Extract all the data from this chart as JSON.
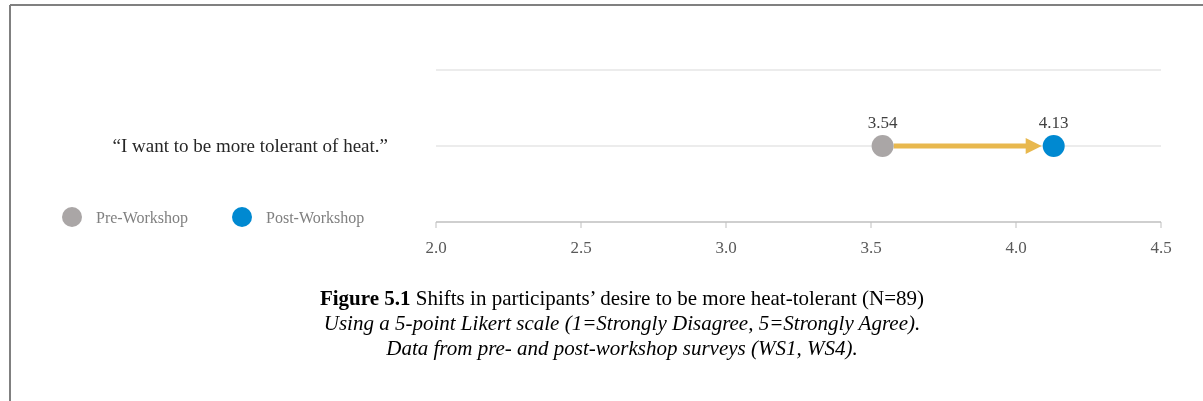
{
  "chart_data": {
    "type": "scatter",
    "orientation": "horizontal",
    "title": "Figure 5.1 Shifts in participants’ desire to be more heat-tolerant (N=89)",
    "subtitle": "Using a 5-point Likert scale (1=Strongly Disagree, 5=Strongly Agree).",
    "annotations": [
      "Data from pre- and post-workshop surveys (WS1, WS4)."
    ],
    "categories": [
      "“I want to be more tolerant of heat.”"
    ],
    "series": [
      {
        "name": "Pre-Workshop",
        "color": "#aaa6a6",
        "values": [
          3.54
        ]
      },
      {
        "name": "Post-Workshop",
        "color": "#0089d1",
        "values": [
          4.13
        ]
      }
    ],
    "xlim": [
      2,
      4.5
    ],
    "xticks": [
      {
        "value": 2,
        "label": "2.0"
      },
      {
        "value": 2.5,
        "label": "2.5"
      },
      {
        "value": 3,
        "label": "3.0"
      },
      {
        "value": 3.5,
        "label": "3.5"
      },
      {
        "value": 4,
        "label": "4.0"
      },
      {
        "value": 4.5,
        "label": "4.5"
      }
    ],
    "grid": "y",
    "legend": "bottom left",
    "marker": "circle",
    "data_labels": true
  }
}
